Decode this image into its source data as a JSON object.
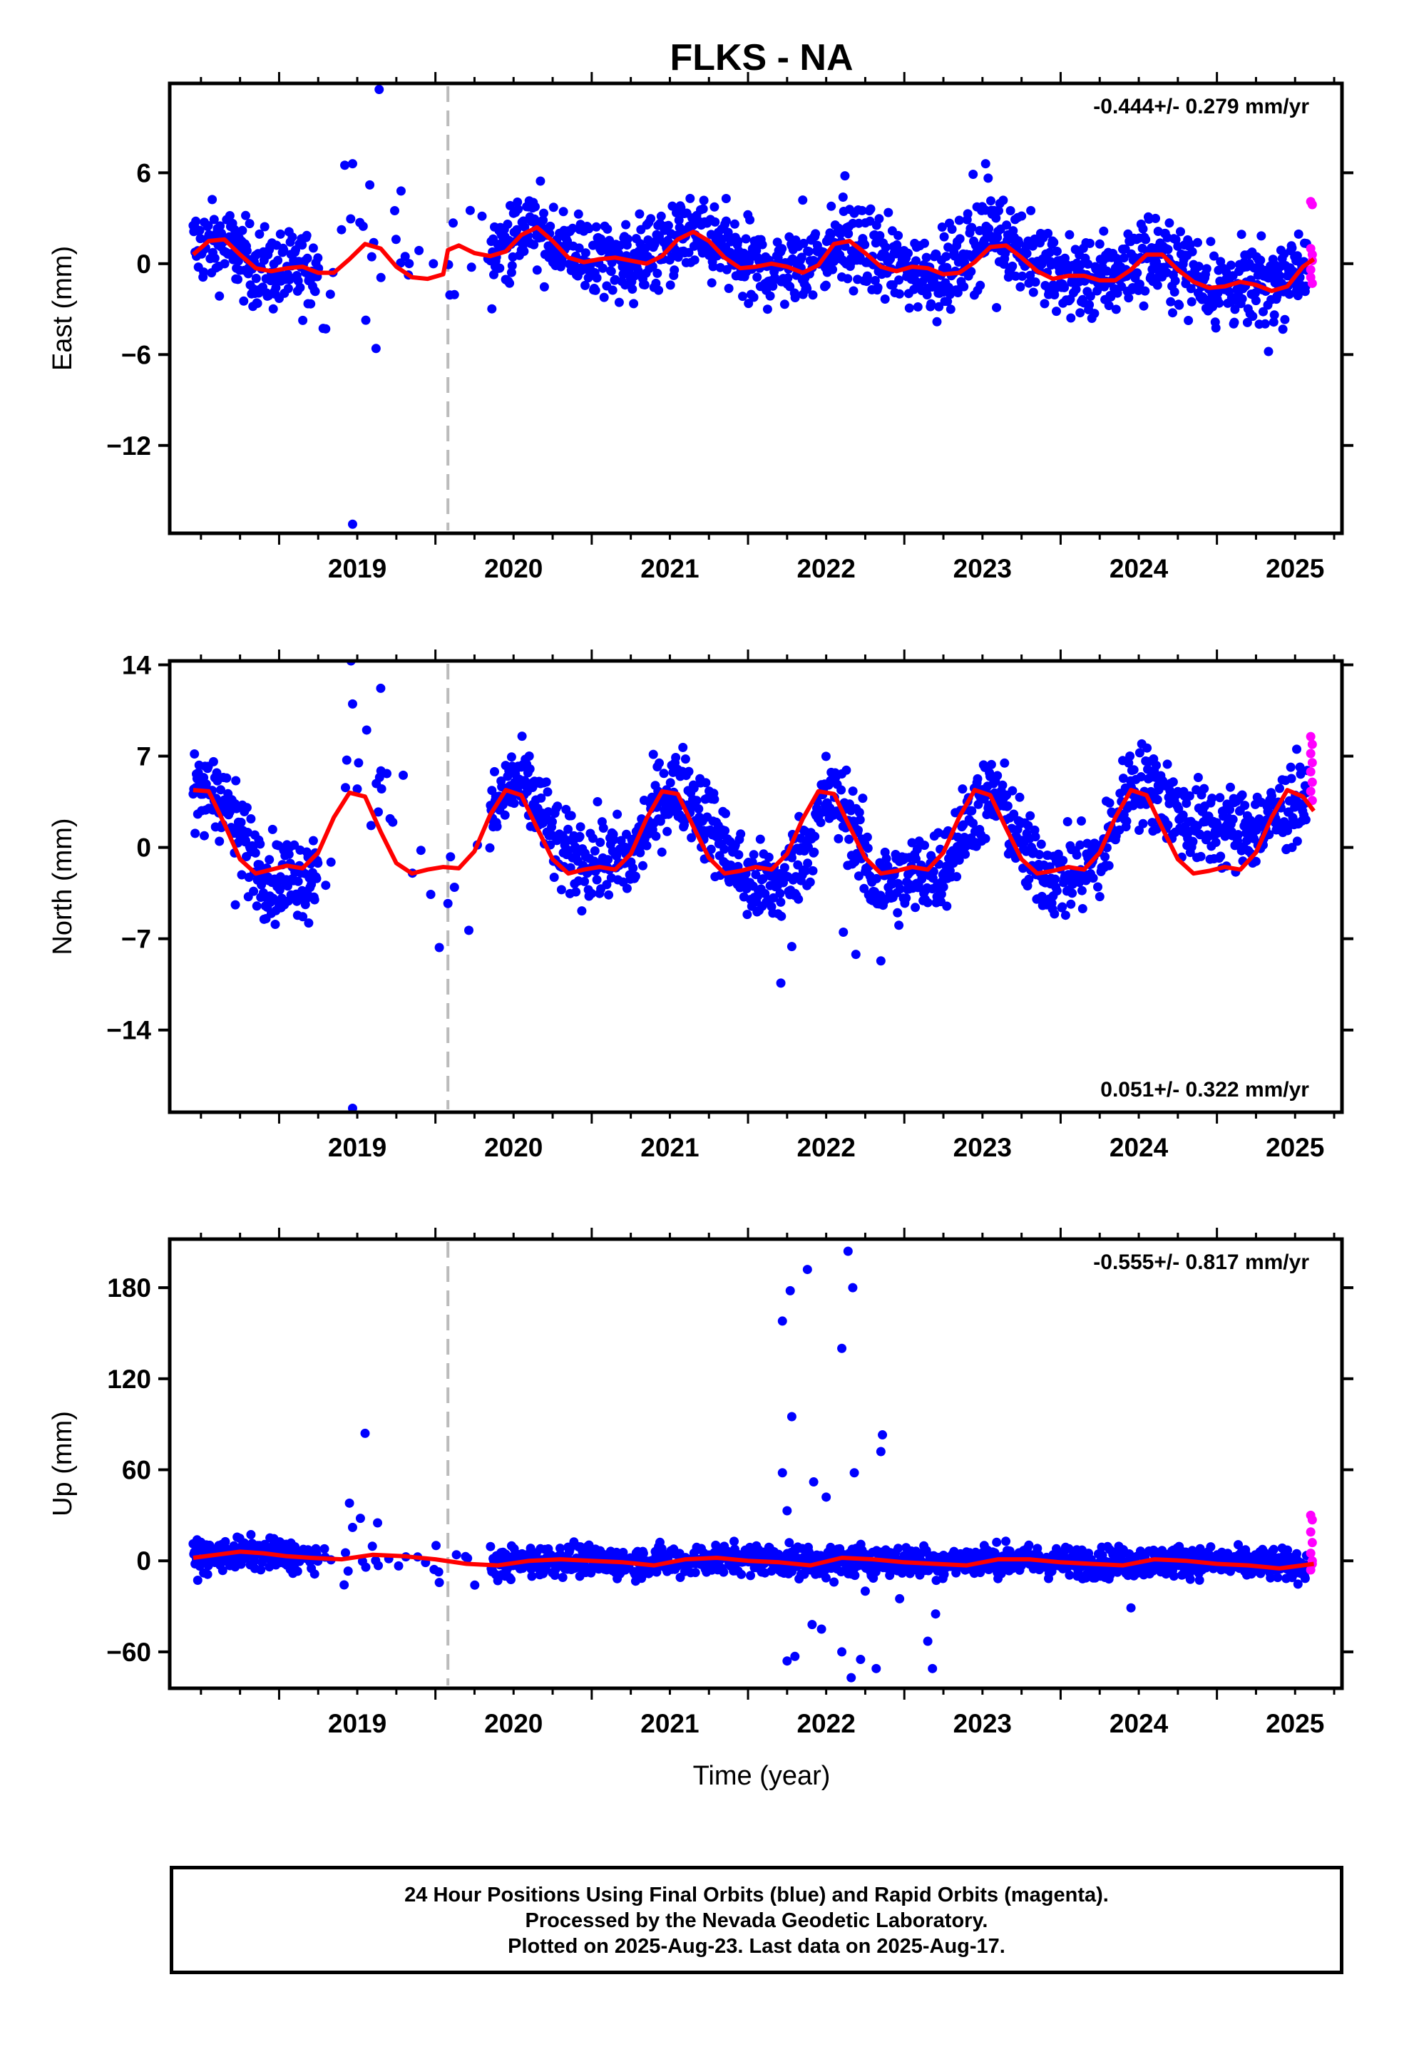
{
  "figure": {
    "title": "FLKS - NA",
    "xlabel": "Time (year)",
    "caption": [
      "24 Hour Positions Using Final Orbits (blue) and Rapid Orbits (magenta).",
      "Processed by the Nevada Geodetic Laboratory.",
      "Plotted on 2025-Aug-23. Last data on 2025-Aug-17."
    ],
    "colors": {
      "final_orbits": "#0000ff",
      "rapid_orbits": "#ff00ff",
      "model": "#ff0000",
      "event_line": "#bbbbbb"
    }
  },
  "chart_data": [
    {
      "type": "scatter",
      "panel": "east",
      "ylabel": "East (mm)",
      "rate_text": "-0.444+/- 0.279 mm/yr",
      "rate_position": "top-right",
      "xlim": [
        2018.3,
        2025.8
      ],
      "ylim": [
        -17.8,
        11.9
      ],
      "yticks": [
        6,
        0,
        -6,
        -12
      ],
      "ytick_labels": [
        "6",
        "0",
        "−6",
        "−12"
      ],
      "xticks": [
        2019,
        2020,
        2021,
        2022,
        2023,
        2024,
        2025
      ],
      "event_line_x": 2020.08,
      "model_curve": {
        "x": [
          2018.45,
          2018.55,
          2018.65,
          2018.75,
          2018.85,
          2018.95,
          2019.05,
          2019.15,
          2019.25,
          2019.35,
          2019.45,
          2019.55,
          2019.65,
          2019.75,
          2019.85,
          2019.95,
          2020.05,
          2020.08,
          2020.15,
          2020.25,
          2020.35,
          2020.45,
          2020.55,
          2020.65,
          2020.75,
          2020.85,
          2020.95,
          2021.05,
          2021.15,
          2021.25,
          2021.35,
          2021.45,
          2021.55,
          2021.65,
          2021.75,
          2021.85,
          2021.95,
          2022.05,
          2022.15,
          2022.25,
          2022.35,
          2022.45,
          2022.55,
          2022.65,
          2022.75,
          2022.85,
          2022.95,
          2023.05,
          2023.15,
          2023.25,
          2023.35,
          2023.45,
          2023.55,
          2023.65,
          2023.75,
          2023.85,
          2023.95,
          2024.05,
          2024.15,
          2024.25,
          2024.35,
          2024.45,
          2024.55,
          2024.65,
          2024.75,
          2024.85,
          2024.95,
          2025.05,
          2025.15,
          2025.25,
          2025.35,
          2025.45,
          2025.55,
          2025.62
        ],
        "y": [
          0.6,
          1.5,
          1.6,
          0.6,
          -0.3,
          -0.5,
          -0.3,
          -0.2,
          -0.6,
          -0.6,
          0.3,
          1.3,
          1.0,
          -0.2,
          -0.9,
          -1.0,
          -0.7,
          0.9,
          1.2,
          0.7,
          0.5,
          0.8,
          1.9,
          2.4,
          1.5,
          0.4,
          0.1,
          0.3,
          0.4,
          0.2,
          0.0,
          0.5,
          1.6,
          2.1,
          1.5,
          0.4,
          -0.3,
          -0.2,
          0.0,
          -0.2,
          -0.6,
          -0.1,
          1.3,
          1.5,
          0.7,
          -0.2,
          -0.5,
          -0.2,
          -0.3,
          -0.7,
          -0.6,
          0.1,
          1.1,
          1.2,
          0.4,
          -0.5,
          -1.0,
          -0.8,
          -0.8,
          -1.1,
          -1.1,
          -0.4,
          0.6,
          0.6,
          -0.4,
          -1.2,
          -1.6,
          -1.5,
          -1.2,
          -1.4,
          -1.8,
          -1.5,
          -0.2,
          0.3
        ]
      },
      "scatter_profile": {
        "x": [
          2018.45,
          2018.65,
          2018.85,
          2019.05,
          2019.2,
          2019.45,
          2019.6,
          2019.75,
          2019.95,
          2020.1,
          2020.35,
          2020.6,
          2020.8,
          2021.0,
          2021.3,
          2021.6,
          2021.8,
          2022.0,
          2022.3,
          2022.6,
          2022.8,
          2023.0,
          2023.3,
          2023.55,
          2023.75,
          2024.0,
          2024.3,
          2024.55,
          2024.8,
          2025.0,
          2025.3,
          2025.6
        ],
        "y": [
          1.2,
          1.3,
          -0.3,
          -0.6,
          -0.4,
          1.2,
          1.4,
          0.2,
          -1.0,
          1.0,
          0.7,
          2.4,
          1.3,
          0.3,
          0.2,
          1.8,
          1.2,
          -0.3,
          -0.3,
          1.4,
          0.6,
          -0.3,
          -0.6,
          2.4,
          1.0,
          -0.9,
          -1.0,
          0.7,
          -0.3,
          -1.6,
          -1.6,
          0.5
        ]
      },
      "scatter_spread": 1.3,
      "outliers": [
        [
          2019.64,
          11.5
        ],
        [
          2019.47,
          -17.2
        ],
        [
          2019.62,
          -5.6
        ],
        [
          2019.42,
          6.5
        ],
        [
          2019.47,
          6.6
        ],
        [
          2019.58,
          5.2
        ],
        [
          2019.78,
          4.8
        ],
        [
          2022.62,
          5.8
        ],
        [
          2023.44,
          5.9
        ],
        [
          2023.52,
          6.6
        ],
        [
          2025.33,
          -5.8
        ],
        [
          2021.86,
          4.3
        ],
        [
          2022.35,
          4.2
        ],
        [
          2023.59,
          -2.9
        ]
      ],
      "rapid_points": [
        [
          2025.6,
          4.1
        ],
        [
          2025.61,
          3.9
        ],
        [
          2025.6,
          1.0
        ],
        [
          2025.61,
          0.6
        ],
        [
          2025.6,
          -0.4
        ],
        [
          2025.61,
          -1.3
        ],
        [
          2025.6,
          -0.9
        ],
        [
          2025.61,
          0.2
        ]
      ]
    },
    {
      "type": "scatter",
      "panel": "north",
      "ylabel": "North (mm)",
      "rate_text": "0.051+/- 0.322 mm/yr",
      "rate_position": "bottom-right",
      "xlim": [
        2018.3,
        2025.8
      ],
      "ylim": [
        -20.3,
        14.3
      ],
      "yticks": [
        14,
        7,
        0,
        -7,
        -14
      ],
      "ytick_labels": [
        "14",
        "7",
        "0",
        "−7",
        "−14"
      ],
      "xticks": [
        2019,
        2020,
        2021,
        2022,
        2023,
        2024,
        2025
      ],
      "event_line_x": 2020.08,
      "model_curve": {
        "x": [
          2018.45,
          2018.55,
          2018.65,
          2018.75,
          2018.85,
          2018.95,
          2019.05,
          2019.15,
          2019.25,
          2019.35,
          2019.45,
          2019.55,
          2019.65,
          2019.75,
          2019.85,
          2019.95,
          2020.05,
          2020.15,
          2020.25,
          2020.35,
          2020.45,
          2020.55,
          2020.65,
          2020.75,
          2020.85,
          2020.95,
          2021.05,
          2021.15,
          2021.25,
          2021.35,
          2021.45,
          2021.55,
          2021.65,
          2021.75,
          2021.85,
          2021.95,
          2022.05,
          2022.15,
          2022.25,
          2022.35,
          2022.45,
          2022.55,
          2022.65,
          2022.75,
          2022.85,
          2022.95,
          2023.05,
          2023.15,
          2023.25,
          2023.35,
          2023.45,
          2023.55,
          2023.65,
          2023.75,
          2023.85,
          2023.95,
          2024.05,
          2024.15,
          2024.25,
          2024.35,
          2024.45,
          2024.55,
          2024.65,
          2024.75,
          2024.85,
          2024.95,
          2025.05,
          2025.15,
          2025.25,
          2025.35,
          2025.45,
          2025.55,
          2025.62
        ],
        "y": [
          4.4,
          4.3,
          1.8,
          -0.9,
          -2.0,
          -1.7,
          -1.4,
          -1.6,
          -0.4,
          2.3,
          4.2,
          3.9,
          1.2,
          -1.2,
          -2.0,
          -1.7,
          -1.5,
          -1.6,
          -0.3,
          2.5,
          4.4,
          4.0,
          1.5,
          -0.9,
          -2.0,
          -1.7,
          -1.5,
          -1.7,
          -0.5,
          2.2,
          4.3,
          4.1,
          1.6,
          -0.8,
          -2.0,
          -1.8,
          -1.5,
          -1.7,
          -0.5,
          2.2,
          4.3,
          4.1,
          1.6,
          -0.8,
          -2.0,
          -1.8,
          -1.5,
          -1.7,
          -0.4,
          2.3,
          4.4,
          4.0,
          1.5,
          -0.9,
          -2.0,
          -1.8,
          -1.5,
          -1.7,
          -0.4,
          2.3,
          4.4,
          4.0,
          1.5,
          -0.9,
          -2.0,
          -1.8,
          -1.5,
          -1.7,
          -0.4,
          2.3,
          4.4,
          3.9,
          2.8
        ]
      },
      "scatter_profile": {
        "x": [
          2018.45,
          2018.6,
          2018.8,
          2018.95,
          2019.2,
          2019.5,
          2019.7,
          2019.9,
          2020.05,
          2020.35,
          2020.5,
          2020.65,
          2020.8,
          2021.0,
          2021.25,
          2021.45,
          2021.6,
          2021.8,
          2022.0,
          2022.2,
          2022.4,
          2022.5,
          2022.65,
          2022.8,
          2023.0,
          2023.25,
          2023.45,
          2023.6,
          2023.8,
          2024.0,
          2024.25,
          2024.45,
          2024.6,
          2024.8,
          2025.0,
          2025.3,
          2025.5,
          2025.6
        ],
        "y": [
          3.5,
          4.5,
          0.0,
          -2.5,
          -2.0,
          4.0,
          3.0,
          -2.0,
          -2.5,
          2.0,
          5.2,
          3.5,
          -0.5,
          -1.0,
          -1.0,
          4.0,
          4.5,
          1.0,
          -2.8,
          -3.0,
          0.5,
          4.0,
          2.5,
          -3.0,
          -2.5,
          -1.5,
          3.0,
          4.0,
          -1.0,
          -2.5,
          -1.0,
          5.0,
          4.5,
          2.0,
          1.5,
          1.5,
          3.5,
          4.0
        ]
      },
      "scatter_spread": 1.6,
      "outliers": [
        [
          2019.46,
          14.3
        ],
        [
          2019.47,
          11.0
        ],
        [
          2019.65,
          12.2
        ],
        [
          2019.56,
          9.0
        ],
        [
          2019.47,
          -20.0
        ],
        [
          2022.21,
          -10.4
        ],
        [
          2022.28,
          -7.6
        ],
        [
          2022.85,
          -8.7
        ],
        [
          2022.69,
          -8.2
        ],
        [
          2022.61,
          -6.5
        ],
        [
          2020.08,
          -4.3
        ],
        [
          2019.97,
          -3.6
        ],
        [
          2018.72,
          -4.4
        ]
      ],
      "rapid_points": [
        [
          2025.6,
          8.5
        ],
        [
          2025.61,
          7.9
        ],
        [
          2025.6,
          7.2
        ],
        [
          2025.61,
          6.5
        ],
        [
          2025.6,
          5.8
        ],
        [
          2025.61,
          5.0
        ],
        [
          2025.6,
          4.3
        ],
        [
          2025.61,
          3.6
        ]
      ]
    },
    {
      "type": "scatter",
      "panel": "up",
      "ylabel": "Up (mm)",
      "rate_text": "-0.555+/- 0.817 mm/yr",
      "rate_position": "top-right",
      "xlim": [
        2018.3,
        2025.8
      ],
      "ylim": [
        -84,
        212
      ],
      "yticks": [
        180,
        120,
        60,
        0,
        -60
      ],
      "ytick_labels": [
        "180",
        "120",
        "60",
        "0",
        "−60"
      ],
      "xticks": [
        2019,
        2020,
        2021,
        2022,
        2023,
        2024,
        2025
      ],
      "event_line_x": 2020.08,
      "model_curve": {
        "x": [
          2018.45,
          2018.6,
          2018.75,
          2018.9,
          2019.05,
          2019.2,
          2019.4,
          2019.6,
          2019.8,
          2020.0,
          2020.2,
          2020.4,
          2020.6,
          2020.8,
          2021.0,
          2021.2,
          2021.4,
          2021.6,
          2021.8,
          2022.0,
          2022.2,
          2022.4,
          2022.6,
          2022.8,
          2023.0,
          2023.2,
          2023.4,
          2023.6,
          2023.8,
          2024.0,
          2024.2,
          2024.4,
          2024.6,
          2024.8,
          2025.0,
          2025.2,
          2025.4,
          2025.62
        ],
        "y": [
          2,
          4,
          6,
          5,
          3,
          2,
          1,
          4,
          3,
          1,
          -2,
          -3,
          0,
          1,
          0,
          -1,
          -3,
          1,
          2,
          0,
          -1,
          -3,
          2,
          1,
          -1,
          -2,
          -3,
          1,
          1,
          -1,
          -2,
          -3,
          1,
          0,
          -2,
          -3,
          -5,
          -2
        ]
      },
      "scatter_profile": {
        "x": [
          2018.45,
          2018.8,
          2019.1,
          2019.5,
          2019.8,
          2020.0,
          2020.4,
          2020.8,
          2021.2,
          2021.6,
          2022.0,
          2022.4,
          2022.8,
          2023.2,
          2023.6,
          2024.0,
          2024.4,
          2024.8,
          2025.2,
          2025.6
        ],
        "y": [
          2,
          5,
          3,
          2,
          4,
          1,
          -2,
          1,
          -1,
          0,
          2,
          -1,
          1,
          -1,
          1,
          -1,
          -1,
          0,
          -2,
          -3
        ]
      },
      "scatter_spread": 5,
      "outliers": [
        [
          2019.55,
          84
        ],
        [
          2019.45,
          38
        ],
        [
          2019.52,
          28
        ],
        [
          2019.47,
          22
        ],
        [
          2019.63,
          25
        ],
        [
          2022.22,
          158
        ],
        [
          2022.27,
          178
        ],
        [
          2022.38,
          192
        ],
        [
          2022.64,
          204
        ],
        [
          2022.67,
          180
        ],
        [
          2022.6,
          140
        ],
        [
          2022.28,
          95
        ],
        [
          2022.22,
          58
        ],
        [
          2022.25,
          33
        ],
        [
          2022.42,
          52
        ],
        [
          2022.5,
          42
        ],
        [
          2022.68,
          58
        ],
        [
          2022.85,
          72
        ],
        [
          2022.86,
          83
        ],
        [
          2022.47,
          -45
        ],
        [
          2022.41,
          -42
        ],
        [
          2022.3,
          -63
        ],
        [
          2022.25,
          -66
        ],
        [
          2022.66,
          -77
        ],
        [
          2022.72,
          -65
        ],
        [
          2022.6,
          -60
        ],
        [
          2022.82,
          -71
        ],
        [
          2023.15,
          -53
        ],
        [
          2023.18,
          -71
        ],
        [
          2022.97,
          -25
        ],
        [
          2023.2,
          -35
        ],
        [
          2022.55,
          -14
        ],
        [
          2022.75,
          -20
        ],
        [
          2024.45,
          -31
        ]
      ],
      "rapid_points": [
        [
          2025.6,
          30
        ],
        [
          2025.61,
          27
        ],
        [
          2025.6,
          19
        ],
        [
          2025.61,
          12
        ],
        [
          2025.6,
          5
        ],
        [
          2025.61,
          -2
        ],
        [
          2025.6,
          -6
        ],
        [
          2025.61,
          0
        ]
      ]
    }
  ]
}
